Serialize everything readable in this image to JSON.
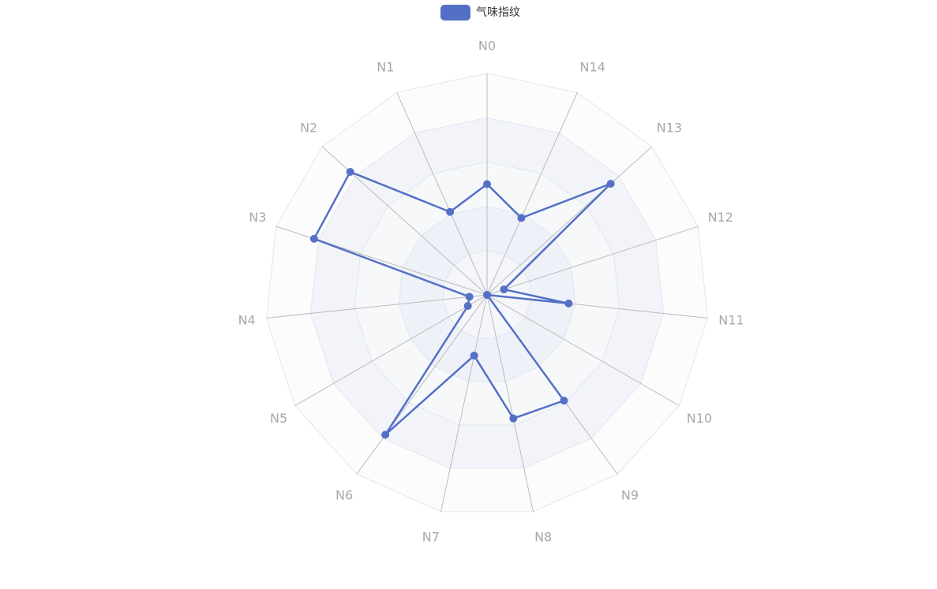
{
  "chart_data": {
    "type": "radar",
    "categories": [
      "N0",
      "N1",
      "N2",
      "N3",
      "N4",
      "N5",
      "N6",
      "N7",
      "N8",
      "N9",
      "N10",
      "N11",
      "N12",
      "N13",
      "N14"
    ],
    "ylim": [
      0,
      100
    ],
    "series": [
      {
        "name": "气味指纹",
        "color": "#5470c6",
        "values": [
          50,
          41,
          83,
          82,
          8,
          10,
          78,
          28,
          57,
          59,
          0,
          37,
          8,
          75,
          38
        ]
      }
    ]
  }
}
